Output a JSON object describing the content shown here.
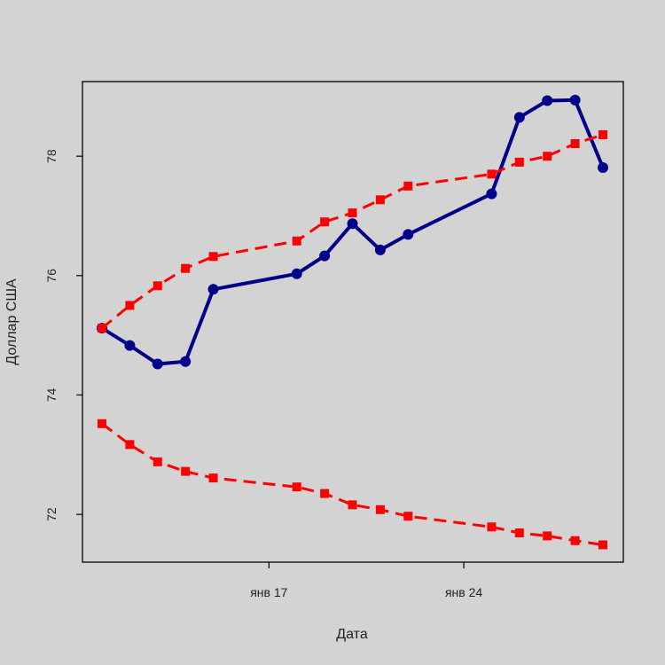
{
  "chart_data": {
    "type": "line",
    "xlabel": "Дата",
    "ylabel": "Доллар США",
    "x_tick_labels": [
      "янв 17",
      "янв 24"
    ],
    "y_tick_labels": [
      "72",
      "74",
      "76",
      "78"
    ],
    "ylim": [
      71.2,
      79.25
    ],
    "grid": false,
    "legend": "none",
    "x_dates": [
      "2022-01-11",
      "2022-01-12",
      "2022-01-13",
      "2022-01-14",
      "2022-01-15",
      "2022-01-18",
      "2022-01-19",
      "2022-01-20",
      "2022-01-21",
      "2022-01-22",
      "2022-01-25",
      "2022-01-26",
      "2022-01-27",
      "2022-01-28",
      "2022-01-29"
    ],
    "series": [
      {
        "style": "solid",
        "color": "#00008b",
        "marker": "circle",
        "values": [
          75.12,
          74.83,
          74.52,
          74.56,
          75.77,
          76.03,
          76.33,
          76.87,
          76.43,
          76.69,
          77.37,
          78.65,
          78.93,
          78.94,
          77.81
        ]
      },
      {
        "style": "dashed",
        "color": "#ff0000",
        "marker": "square",
        "values": [
          75.12,
          75.5,
          75.83,
          76.12,
          76.32,
          76.58,
          76.9,
          77.05,
          77.27,
          77.5,
          77.7,
          77.9,
          78.0,
          78.21,
          78.36
        ]
      },
      {
        "style": "dashed",
        "color": "#ff0000",
        "marker": "square",
        "values": [
          73.52,
          73.17,
          72.88,
          72.72,
          72.61,
          72.46,
          72.35,
          72.16,
          72.08,
          71.97,
          71.79,
          71.69,
          71.64,
          71.56,
          71.49
        ]
      }
    ]
  }
}
